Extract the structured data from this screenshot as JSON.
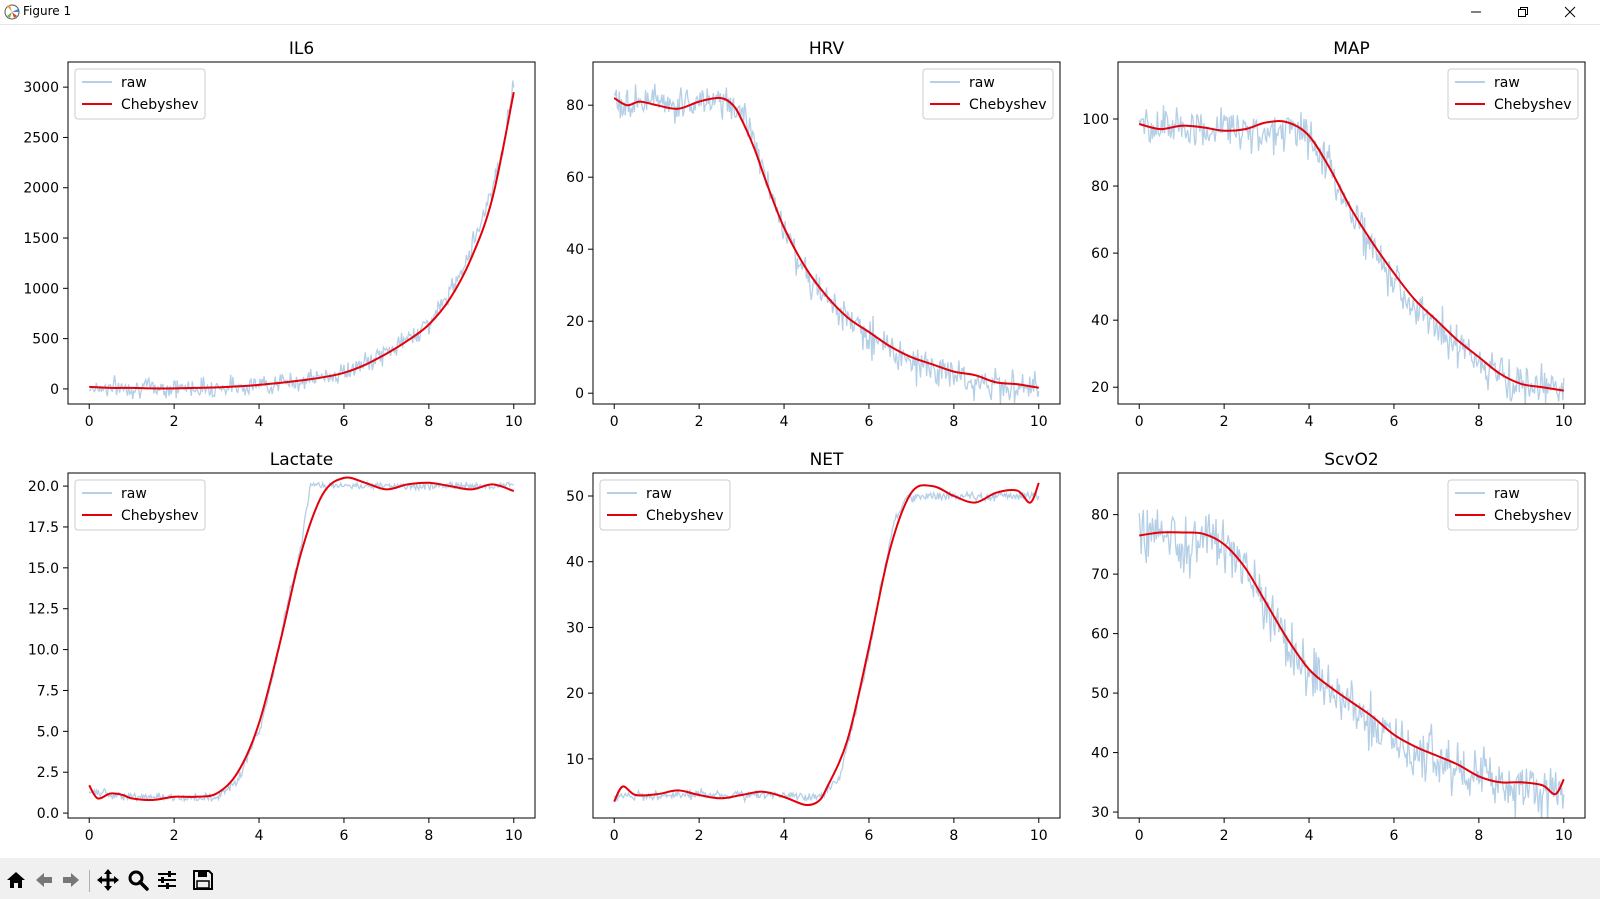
{
  "window": {
    "title": "Figure 1"
  },
  "toolbar": {
    "buttons": [
      {
        "icon": "home-icon",
        "name": "home-button"
      },
      {
        "icon": "arrow-left-icon",
        "name": "back-button"
      },
      {
        "icon": "arrow-right-icon",
        "name": "forward-button"
      },
      {
        "icon": "move-icon",
        "name": "pan-button"
      },
      {
        "icon": "magnifier-icon",
        "name": "zoom-button"
      },
      {
        "icon": "sliders-icon",
        "name": "configure-subplots-button"
      },
      {
        "icon": "save-icon",
        "name": "save-button"
      }
    ]
  },
  "colors": {
    "raw": "#b4cfe6",
    "cheb": "#e3000b",
    "axes": "#000000",
    "legend_border": "#cccccc"
  },
  "legend": {
    "raw": "raw",
    "cheb": "Chebyshev"
  },
  "chart_data": [
    {
      "type": "line",
      "title": "IL6",
      "xlim": [
        -0.5,
        10.5
      ],
      "ylim": [
        -150,
        3250
      ],
      "xticks": [
        0,
        2,
        4,
        6,
        8,
        10
      ],
      "yticks": [
        0,
        500,
        1000,
        1500,
        2000,
        2500,
        3000
      ],
      "legend_loc": "upper-left",
      "series": [
        {
          "name": "raw",
          "x": [
            0,
            1,
            2,
            3,
            4,
            5,
            6,
            6.5,
            7,
            7.5,
            8,
            8.5,
            9,
            9.5,
            9.8,
            10
          ],
          "y": [
            15,
            15,
            10,
            18,
            40,
            80,
            160,
            250,
            360,
            500,
            650,
            950,
            1400,
            2000,
            2500,
            3100
          ],
          "noise": 80
        },
        {
          "name": "Chebyshev",
          "x": [
            0,
            0.5,
            1,
            1.5,
            2,
            2.5,
            3,
            3.5,
            4,
            4.5,
            5,
            5.5,
            6,
            6.5,
            7,
            7.5,
            8,
            8.5,
            9,
            9.5,
            10
          ],
          "y": [
            20,
            10,
            10,
            5,
            5,
            10,
            15,
            25,
            40,
            60,
            85,
            115,
            160,
            240,
            350,
            480,
            640,
            900,
            1300,
            1900,
            2950
          ]
        }
      ]
    },
    {
      "type": "line",
      "title": "HRV",
      "xlim": [
        -0.5,
        10.5
      ],
      "ylim": [
        -3,
        92
      ],
      "xticks": [
        0,
        2,
        4,
        6,
        8,
        10
      ],
      "yticks": [
        0,
        20,
        40,
        60,
        80
      ],
      "legend_loc": "upper-right",
      "series": [
        {
          "name": "raw",
          "x": [
            0,
            0.5,
            1,
            1.5,
            2,
            2.5,
            3,
            3.3,
            3.6,
            4,
            4.5,
            5,
            6,
            7,
            8,
            9,
            10
          ],
          "y": [
            81,
            81,
            80,
            80,
            81,
            81,
            79,
            70,
            58,
            45,
            33,
            26,
            16,
            9,
            5,
            3,
            2
          ],
          "noise": 4
        },
        {
          "name": "Chebyshev",
          "x": [
            0,
            0.3,
            0.6,
            1,
            1.5,
            2,
            2.5,
            2.8,
            3,
            3.3,
            3.6,
            4,
            4.5,
            5,
            5.5,
            6,
            6.5,
            7,
            7.5,
            8,
            8.5,
            9,
            9.5,
            10
          ],
          "y": [
            82,
            80,
            81,
            80,
            79,
            81,
            82,
            80,
            76,
            68,
            58,
            46,
            35,
            27,
            21,
            17,
            13,
            10,
            8,
            6,
            5,
            3,
            2.5,
            1.5
          ]
        }
      ]
    },
    {
      "type": "line",
      "title": "MAP",
      "xlim": [
        -0.5,
        10.5
      ],
      "ylim": [
        15,
        117
      ],
      "xticks": [
        0,
        2,
        4,
        6,
        8,
        10
      ],
      "yticks": [
        20,
        40,
        60,
        80,
        100
      ],
      "legend_loc": "upper-right",
      "series": [
        {
          "name": "raw",
          "x": [
            0,
            1,
            2,
            3,
            3.5,
            4,
            4.5,
            5,
            5.5,
            6,
            6.5,
            7,
            7.5,
            8,
            8.5,
            9,
            9.5,
            10
          ],
          "y": [
            98,
            97,
            97,
            96,
            98,
            95,
            85,
            72,
            61,
            52,
            44,
            38,
            33,
            28,
            24,
            21,
            20,
            20
          ],
          "noise": 5
        },
        {
          "name": "Chebyshev",
          "x": [
            0,
            0.5,
            1,
            1.5,
            2,
            2.5,
            3,
            3.5,
            4,
            4.5,
            5,
            5.5,
            6,
            6.5,
            7,
            7.5,
            8,
            8.5,
            9,
            9.5,
            10
          ],
          "y": [
            98.5,
            97,
            98,
            97.5,
            96.5,
            97,
            99,
            99,
            95,
            85,
            73,
            63,
            54,
            46,
            40,
            34,
            29,
            24,
            21,
            20,
            19
          ]
        }
      ]
    },
    {
      "type": "line",
      "title": "Lactate",
      "xlim": [
        -0.5,
        10.5
      ],
      "ylim": [
        -0.3,
        20.8
      ],
      "xticks": [
        0,
        2,
        4,
        6,
        8,
        10
      ],
      "yticks": [
        0.0,
        2.5,
        5.0,
        7.5,
        10.0,
        12.5,
        15.0,
        17.5,
        20.0
      ],
      "ytick_fmt": 1,
      "legend_loc": "upper-left",
      "series": [
        {
          "name": "raw",
          "x": [
            0,
            1,
            2,
            3,
            3.5,
            4,
            4.3,
            4.6,
            5,
            5.2,
            5.3,
            6,
            7,
            8,
            9,
            10
          ],
          "y": [
            1.3,
            1.0,
            0.9,
            0.9,
            2.0,
            5.0,
            8.0,
            12.0,
            16.5,
            20.0,
            20.0,
            20.0,
            20.0,
            20.0,
            20.0,
            20.0
          ],
          "noise": 0.2
        },
        {
          "name": "Chebyshev",
          "x": [
            0,
            0.2,
            0.5,
            0.8,
            1,
            1.5,
            2,
            2.5,
            3,
            3.5,
            4,
            4.5,
            5,
            5.5,
            6,
            6.5,
            7,
            7.5,
            8,
            8.5,
            9,
            9.5,
            10
          ],
          "y": [
            1.7,
            0.9,
            1.2,
            1.1,
            0.9,
            0.8,
            1.0,
            1.0,
            1.2,
            2.5,
            5.5,
            10.5,
            16.0,
            19.5,
            20.5,
            20.2,
            19.8,
            20.1,
            20.2,
            20.0,
            19.8,
            20.1,
            19.7
          ]
        }
      ]
    },
    {
      "type": "line",
      "title": "NET",
      "xlim": [
        -0.5,
        10.5
      ],
      "ylim": [
        1,
        53.5
      ],
      "xticks": [
        0,
        2,
        4,
        6,
        8,
        10
      ],
      "yticks": [
        10,
        20,
        30,
        40,
        50
      ],
      "legend_loc": "upper-left",
      "series": [
        {
          "name": "raw",
          "x": [
            0,
            1,
            2,
            3,
            4,
            4.8,
            5.3,
            5.6,
            6,
            6.3,
            6.6,
            6.9,
            7,
            8,
            9,
            10
          ],
          "y": [
            4.5,
            4.5,
            4.6,
            4.5,
            4.4,
            4.2,
            7,
            15,
            26,
            37,
            46,
            50,
            50,
            50,
            50,
            50
          ],
          "noise": 0.6
        },
        {
          "name": "Chebyshev",
          "x": [
            0,
            0.2,
            0.5,
            1,
            1.5,
            2,
            2.5,
            3,
            3.5,
            4,
            4.5,
            4.8,
            5,
            5.5,
            6,
            6.5,
            7,
            7.5,
            8,
            8.5,
            9,
            9.5,
            9.8,
            10
          ],
          "y": [
            3.5,
            5.8,
            4.5,
            4.6,
            5.2,
            4.5,
            4.0,
            4.5,
            5.0,
            4.2,
            3.0,
            3.5,
            5.5,
            13.0,
            27.0,
            42.0,
            50.5,
            51.5,
            50.0,
            49.0,
            50.5,
            50.8,
            49.0,
            52.0
          ]
        }
      ]
    },
    {
      "type": "line",
      "title": "ScvO2",
      "xlim": [
        -0.5,
        10.5
      ],
      "ylim": [
        29,
        87
      ],
      "xticks": [
        0,
        2,
        4,
        6,
        8,
        10
      ],
      "yticks": [
        30,
        40,
        50,
        60,
        70,
        80
      ],
      "legend_loc": "upper-right",
      "series": [
        {
          "name": "raw",
          "x": [
            0,
            0.5,
            1,
            1.5,
            2,
            2.5,
            3,
            3.5,
            4,
            4.5,
            5,
            5.5,
            6,
            6.5,
            7,
            7.5,
            8,
            8.5,
            9,
            9.5,
            10
          ],
          "y": [
            77,
            77,
            76,
            76,
            75,
            71,
            65,
            58,
            54,
            51,
            48,
            45,
            42,
            40,
            39,
            37,
            36,
            35,
            35,
            34,
            34
          ],
          "noise": 4
        },
        {
          "name": "Chebyshev",
          "x": [
            0,
            0.5,
            1,
            1.5,
            2,
            2.5,
            3,
            3.5,
            4,
            4.5,
            5,
            5.5,
            6,
            6.5,
            7,
            7.5,
            8,
            8.5,
            9,
            9.5,
            9.8,
            10
          ],
          "y": [
            76.5,
            77,
            77,
            76.8,
            75,
            71,
            65,
            59,
            54,
            51,
            48.5,
            46,
            43,
            41,
            39.5,
            38,
            36,
            35,
            35,
            34.5,
            33,
            35.5
          ]
        }
      ]
    }
  ]
}
